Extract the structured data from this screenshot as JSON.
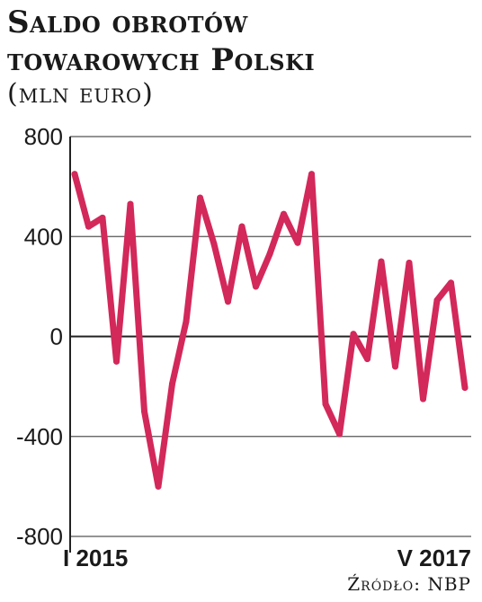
{
  "chart_data": {
    "type": "line",
    "title_line1": "Saldo obrotów",
    "title_line2": "towarowych Polski",
    "subtitle": "(mln euro)",
    "x_start_label": "I 2015",
    "x_end_label": "V 2017",
    "ylim": [
      -800,
      800
    ],
    "yticks": [
      800,
      400,
      0,
      -400,
      -800
    ],
    "ytick_labels": [
      "800",
      "400",
      "0",
      "-400",
      "-800"
    ],
    "grid": true,
    "series": [
      {
        "color": "#d3285a",
        "values": [
          650,
          440,
          475,
          -100,
          530,
          -300,
          -600,
          -190,
          60,
          555,
          370,
          140,
          440,
          200,
          330,
          490,
          375,
          650,
          -270,
          -390,
          10,
          -90,
          300,
          -120,
          295,
          -250,
          145,
          215,
          -205
        ]
      }
    ],
    "source_label": "Źródło:",
    "source_value": "NBP"
  }
}
